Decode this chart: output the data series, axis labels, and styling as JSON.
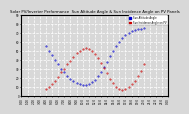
{
  "title": "Solar PV/Inverter Performance  Sun Altitude Angle & Sun Incidence Angle on PV Panels",
  "legend_blue": "Sun Altitude Angle",
  "legend_red": "Sun Incidence Angle on PV",
  "background_color": "#d8d8d8",
  "plot_bg": "#d8d8d8",
  "grid_color": "#ffffff",
  "blue_color": "#0000cc",
  "red_color": "#cc0000",
  "ylim": [
    0,
    90
  ],
  "xlim": [
    0,
    288
  ],
  "blue_x": [
    48,
    54,
    60,
    66,
    72,
    78,
    84,
    90,
    96,
    102,
    108,
    114,
    120,
    126,
    132,
    138,
    144,
    150,
    156,
    162,
    168,
    174,
    180,
    186,
    192,
    198,
    204,
    210,
    216,
    222,
    228,
    234,
    240
  ],
  "blue_y": [
    55,
    50,
    45,
    40,
    35,
    30,
    26,
    22,
    19,
    16,
    14,
    13,
    12,
    12,
    13,
    15,
    18,
    22,
    27,
    32,
    38,
    44,
    50,
    55,
    60,
    64,
    67,
    70,
    72,
    73,
    74,
    74,
    75
  ],
  "red_x": [
    48,
    54,
    60,
    66,
    72,
    78,
    84,
    90,
    96,
    102,
    108,
    114,
    120,
    126,
    132,
    138,
    144,
    150,
    156,
    162,
    168,
    174,
    180,
    186,
    192,
    198,
    204,
    210,
    216,
    222,
    228,
    234,
    240
  ],
  "red_y": [
    8,
    10,
    13,
    17,
    21,
    26,
    30,
    35,
    39,
    43,
    47,
    50,
    52,
    53,
    52,
    50,
    46,
    42,
    37,
    31,
    25,
    19,
    14,
    10,
    8,
    7,
    8,
    10,
    13,
    17,
    22,
    28,
    35
  ],
  "xtick_positions": [
    0,
    12,
    24,
    36,
    48,
    60,
    72,
    84,
    96,
    108,
    120,
    132,
    144,
    156,
    168,
    180,
    192,
    204,
    216,
    228,
    240,
    252,
    264,
    276,
    288
  ],
  "xtick_labels": [
    "0:00",
    "1:00",
    "2:00",
    "3:00",
    "4:00",
    "5:00",
    "6:00",
    "7:00",
    "8:00",
    "9:00",
    "10:0",
    "11:0",
    "12:0",
    "13:0",
    "14:0",
    "15:0",
    "16:0",
    "17:0",
    "18:0",
    "19:0",
    "20:0",
    "21:0",
    "22:0",
    "23:0",
    "0:00"
  ],
  "ytick_positions": [
    0,
    10,
    20,
    30,
    40,
    50,
    60,
    70,
    80,
    90
  ],
  "ytick_labels": [
    "0",
    "10",
    "20",
    "30",
    "40",
    "50",
    "60",
    "70",
    "80",
    "90"
  ]
}
